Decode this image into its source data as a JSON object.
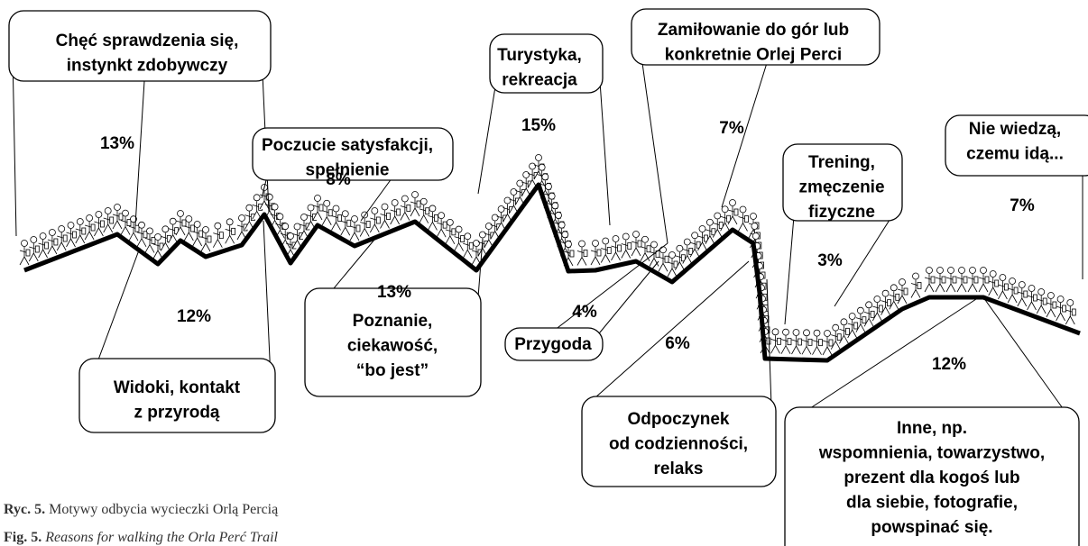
{
  "items": [
    {
      "label": [
        "Chęć sprawdzenia się,",
        "instynkt zdobywczy"
      ],
      "percent": "13%"
    },
    {
      "label": [
        "Widoki, kontakt",
        "z przyrodą"
      ],
      "percent": "12%"
    },
    {
      "label": [
        "Poczucie satysfakcji,",
        "spełnienie"
      ],
      "percent": "8%"
    },
    {
      "label": [
        "Poznanie,",
        "ciekawość,",
        "“bo jest”"
      ],
      "percent": "13%"
    },
    {
      "label": [
        "Turystyka,",
        "rekreacja"
      ],
      "percent": "15%"
    },
    {
      "label": [
        "Przygoda"
      ],
      "percent": "4%"
    },
    {
      "label": [
        "Zamiłowanie do gór lub",
        "konkretnie Orlej Perci"
      ],
      "percent": "7%"
    },
    {
      "label": [
        "Odpoczynek",
        "od codzienności,",
        "relaks"
      ],
      "percent": "6%"
    },
    {
      "label": [
        "Trening,",
        "zmęczenie",
        "fizyczne"
      ],
      "percent": "3%"
    },
    {
      "label": [
        "Nie wiedzą,",
        "czemu idą..."
      ],
      "percent": "7%"
    },
    {
      "label": [
        "Inne, np.",
        "wspomnienia, towarzystwo,",
        "prezent dla kogoś lub",
        "dla siebie, fotografie,",
        "powspinać się."
      ],
      "percent": "12%"
    }
  ],
  "caption": {
    "pl": {
      "label": "Ryc. 5.",
      "text": "Motywy odbycia wycieczki Orlą Percią"
    },
    "en": {
      "label": "Fig. 5.",
      "text": "Reasons for walking the Orla Perć Trail"
    }
  }
}
